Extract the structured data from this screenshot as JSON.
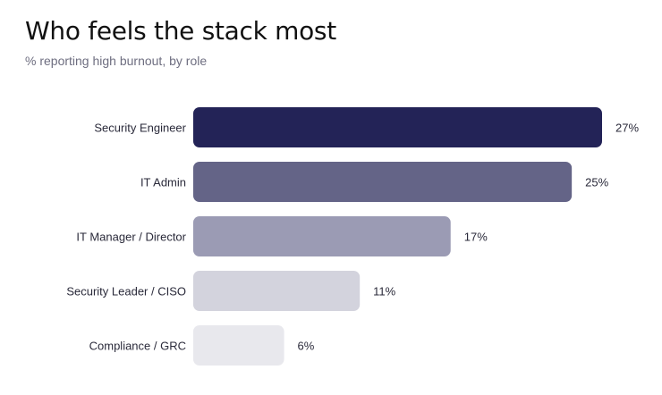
{
  "chart_data": {
    "type": "bar",
    "orientation": "horizontal",
    "title": "Who feels the stack most",
    "subtitle": "% reporting high burnout, by role",
    "categories": [
      "Security Engineer",
      "IT Admin",
      "IT Manager / Director",
      "Security Leader / CISO",
      "Compliance / GRC"
    ],
    "values": [
      27,
      25,
      17,
      11,
      6
    ],
    "value_labels": [
      "27%",
      "25%",
      "17%",
      "11%",
      "6%"
    ],
    "colors": [
      "#232357",
      "#646487",
      "#9b9bb4",
      "#d3d3dd",
      "#e8e8ed"
    ],
    "xlabel": "",
    "ylabel": "",
    "xlim": [
      0,
      27
    ],
    "grid": false
  }
}
